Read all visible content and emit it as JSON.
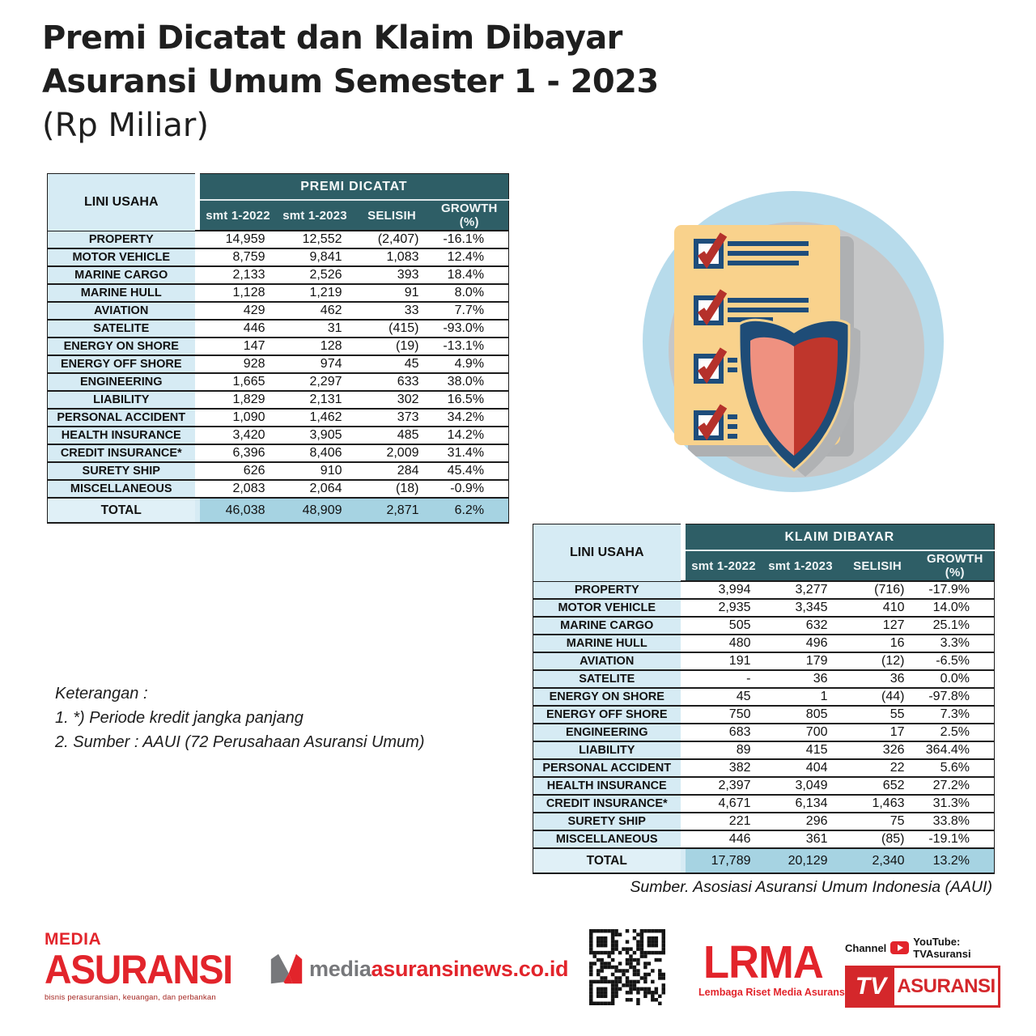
{
  "title": {
    "line1": "Premi Dicatat dan Klaim Dibayar",
    "line2": "Asuransi Umum Semester 1 - 2023",
    "line3": "(Rp Miliar)"
  },
  "tables": [
    {
      "name": "premi-dicatat",
      "col_label": "LINI USAHA",
      "group_header": "PREMI DICATAT",
      "columns": [
        "smt 1-2022",
        "smt 1-2023",
        "SELISIH",
        "GROWTH (%)"
      ],
      "rows": [
        [
          "PROPERTY",
          "14,959",
          "12,552",
          "(2,407)",
          "-16.1%"
        ],
        [
          "MOTOR VEHICLE",
          "8,759",
          "9,841",
          "1,083",
          "12.4%"
        ],
        [
          "MARINE CARGO",
          "2,133",
          "2,526",
          "393",
          "18.4%"
        ],
        [
          "MARINE HULL",
          "1,128",
          "1,219",
          "91",
          "8.0%"
        ],
        [
          "AVIATION",
          "429",
          "462",
          "33",
          "7.7%"
        ],
        [
          "SATELITE",
          "446",
          "31",
          "(415)",
          "-93.0%"
        ],
        [
          "ENERGY ON SHORE",
          "147",
          "128",
          "(19)",
          "-13.1%"
        ],
        [
          "ENERGY OFF SHORE",
          "928",
          "974",
          "45",
          "4.9%"
        ],
        [
          "ENGINEERING",
          "1,665",
          "2,297",
          "633",
          "38.0%"
        ],
        [
          "LIABILITY",
          "1,829",
          "2,131",
          "302",
          "16.5%"
        ],
        [
          "PERSONAL ACCIDENT",
          "1,090",
          "1,462",
          "373",
          "34.2%"
        ],
        [
          "HEALTH INSURANCE",
          "3,420",
          "3,905",
          "485",
          "14.2%"
        ],
        [
          "CREDIT INSURANCE*",
          "6,396",
          "8,406",
          "2,009",
          "31.4%"
        ],
        [
          "SURETY SHIP",
          "626",
          "910",
          "284",
          "45.4%"
        ],
        [
          "MISCELLANEOUS",
          "2,083",
          "2,064",
          "(18)",
          "-0.9%"
        ]
      ],
      "total": [
        "TOTAL",
        "46,038",
        "48,909",
        "2,871",
        "6.2%"
      ]
    },
    {
      "name": "klaim-dibayar",
      "col_label": "LINI USAHA",
      "group_header": "KLAIM DIBAYAR",
      "columns": [
        "smt 1-2022",
        "smt 1-2023",
        "SELISIH",
        "GROWTH (%)"
      ],
      "rows": [
        [
          "PROPERTY",
          "3,994",
          "3,277",
          "(716)",
          "-17.9%"
        ],
        [
          "MOTOR VEHICLE",
          "2,935",
          "3,345",
          "410",
          "14.0%"
        ],
        [
          "MARINE CARGO",
          "505",
          "632",
          "127",
          "25.1%"
        ],
        [
          "MARINE HULL",
          "480",
          "496",
          "16",
          "3.3%"
        ],
        [
          "AVIATION",
          "191",
          "179",
          "(12)",
          "-6.5%"
        ],
        [
          "SATELITE",
          "-",
          "36",
          "36",
          "0.0%"
        ],
        [
          "ENERGY ON SHORE",
          "45",
          "1",
          "(44)",
          "-97.8%"
        ],
        [
          "ENERGY OFF SHORE",
          "750",
          "805",
          "55",
          "7.3%"
        ],
        [
          "ENGINEERING",
          "683",
          "700",
          "17",
          "2.5%"
        ],
        [
          "LIABILITY",
          "89",
          "415",
          "326",
          "364.4%"
        ],
        [
          "PERSONAL ACCIDENT",
          "382",
          "404",
          "22",
          "5.6%"
        ],
        [
          "HEALTH INSURANCE",
          "2,397",
          "3,049",
          "652",
          "27.2%"
        ],
        [
          "CREDIT INSURANCE*",
          "4,671",
          "6,134",
          "1,463",
          "31.3%"
        ],
        [
          "SURETY SHIP",
          "221",
          "296",
          "75",
          "33.8%"
        ],
        [
          "MISCELLANEOUS",
          "446",
          "361",
          "(85)",
          "-19.1%"
        ]
      ],
      "total": [
        "TOTAL",
        "17,789",
        "20,129",
        "2,340",
        "13.2%"
      ]
    }
  ],
  "notes": {
    "heading": "Keterangan :",
    "item1": "1.  *) Periode kredit jangka panjang",
    "item2": "2.  Sumber : AAUI (72 Perusahaan Asuransi Umum)"
  },
  "source_line": "Sumber. Asosiasi Asuransi Umum Indonesia (AAUI)",
  "footer": {
    "media_logo": {
      "top": "MEDIA",
      "main": "ASURANSI",
      "tagline": "bisnis perasuransian, keuangan, dan perbankan"
    },
    "website": {
      "gray": "media",
      "red": "asuransinews.co.id"
    },
    "lrma": {
      "word": "LRMA",
      "tagline": "Lembaga Riset Media Asuransi"
    },
    "tv": {
      "channel_prefix": "Channel",
      "channel_suffix": "YouTube: TVAsuransi",
      "box_left": "TV",
      "box_right": "ASURANSI"
    }
  },
  "colors": {
    "header_teal": "#2e5e66",
    "label_blue": "#d6ebf4",
    "total_blue": "#a6d3e2",
    "brand_red": "#e2242b",
    "shield_navy": "#1e4c77",
    "check_red": "#b5312b",
    "paper_tan": "#f9d28c",
    "circle_blue": "#b7dbeb",
    "circle_gray": "#c6c7c8"
  }
}
